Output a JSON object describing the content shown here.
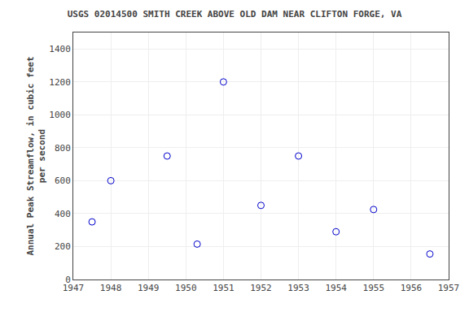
{
  "chart_data": {
    "type": "scatter",
    "title": "USGS 02014500 SMITH CREEK ABOVE OLD DAM NEAR CLIFTON FORGE, VA",
    "ylabel": "Annual Peak Streamflow, in cubic feet\nper second",
    "x": [
      1947.5,
      1948,
      1949.5,
      1950.3,
      1951,
      1952,
      1953,
      1954,
      1955,
      1956.5
    ],
    "values": [
      350,
      600,
      750,
      215,
      1200,
      450,
      750,
      290,
      425,
      155
    ],
    "color": "#0000cc",
    "marker": "circle-open",
    "xlim": [
      1947,
      1957
    ],
    "ylim": [
      0,
      1500
    ],
    "xticks": [
      1947,
      1948,
      1949,
      1950,
      1951,
      1952,
      1953,
      1954,
      1955,
      1956,
      1957
    ],
    "yticks": [
      0,
      200,
      400,
      600,
      800,
      1000,
      1200,
      1400
    ],
    "grid": true
  }
}
